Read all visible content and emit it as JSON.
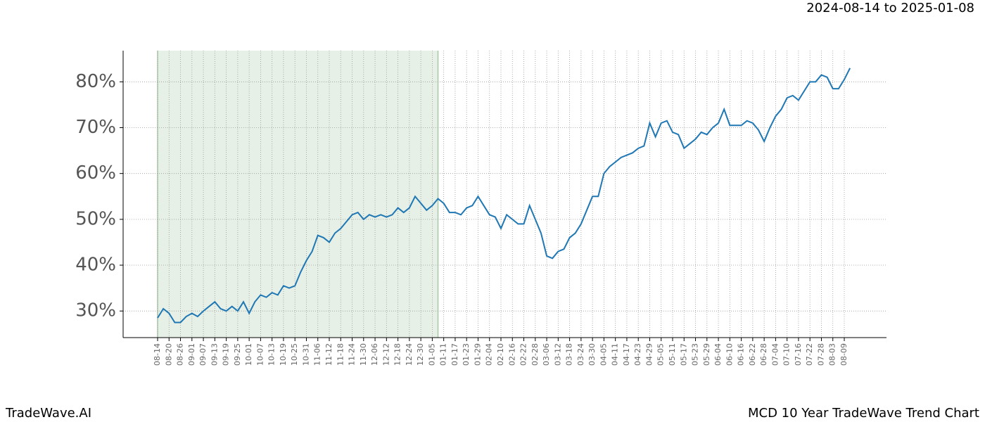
{
  "chart_data": {
    "type": "line",
    "title": "MCD 10 Year TradeWave Trend Chart",
    "date_range": "2024-08-14 to 2025-01-08",
    "source": "TradeWave.AI",
    "categories": [
      "08-14",
      null,
      "08-20",
      null,
      "08-26",
      null,
      "09-01",
      null,
      "09-07",
      null,
      "09-13",
      null,
      "09-19",
      null,
      "09-25",
      null,
      "10-01",
      null,
      "10-07",
      null,
      "10-13",
      null,
      "10-19",
      null,
      "10-25",
      null,
      "10-31",
      null,
      "11-06",
      null,
      "11-12",
      null,
      "11-18",
      null,
      "11-24",
      null,
      "11-30",
      null,
      "12-06",
      null,
      "12-12",
      null,
      "12-18",
      null,
      "12-24",
      null,
      "12-30",
      null,
      "01-05",
      null,
      "01-11",
      null,
      "01-17",
      null,
      "01-23",
      null,
      "01-29",
      null,
      "02-04",
      null,
      "02-10",
      null,
      "02-16",
      null,
      "02-22",
      null,
      "02-28",
      null,
      "03-06",
      null,
      "03-12",
      null,
      "03-18",
      null,
      "03-24",
      null,
      "03-30",
      null,
      "04-05",
      null,
      "04-11",
      null,
      "04-17",
      null,
      "04-23",
      null,
      "04-29",
      null,
      "05-05",
      null,
      "05-11",
      null,
      "05-17",
      null,
      "05-23",
      null,
      "05-29",
      null,
      "06-04",
      null,
      "06-10",
      null,
      "06-16",
      null,
      "06-22",
      null,
      "06-28",
      null,
      "07-04",
      null,
      "07-10",
      null,
      "07-16",
      null,
      "07-22",
      null,
      "07-28",
      null,
      "08-03",
      null,
      "08-09",
      null
    ],
    "values": [
      28.5,
      30.5,
      29.5,
      27.5,
      27.5,
      28.8,
      29.5,
      28.8,
      30,
      31,
      32,
      30.5,
      30,
      31,
      30,
      32,
      29.5,
      32,
      33.5,
      33,
      34,
      33.5,
      35.5,
      35,
      35.5,
      38.5,
      41,
      43,
      46.5,
      46,
      45,
      47,
      48,
      49.5,
      51,
      51.5,
      50,
      51,
      50.5,
      51,
      50.5,
      51,
      52.5,
      51.5,
      52.5,
      55,
      53.5,
      52,
      53,
      54.5,
      53.5,
      51.5,
      51.5,
      51,
      52.5,
      53,
      55,
      53,
      51,
      50.5,
      48,
      51,
      50,
      49,
      49,
      53,
      50,
      47,
      42,
      41.5,
      43,
      43.5,
      46,
      47,
      49,
      52,
      55,
      55,
      60,
      61.5,
      62.5,
      63.5,
      64,
      64.5,
      65.5,
      66,
      71,
      68,
      71,
      71.5,
      69,
      68.5,
      65.5,
      66.5,
      67.5,
      69,
      68.5,
      70,
      71,
      74,
      70.5,
      70.5,
      70.5,
      71.5,
      71,
      69.5,
      67,
      70,
      72.5,
      74,
      76.5,
      77,
      76,
      78,
      80,
      80,
      81.5,
      81,
      78.5,
      78.5,
      80.5,
      83
    ],
    "color": "#1f77b4",
    "shaded_range": [
      0,
      49
    ],
    "shade_color": "#e6f0e6",
    "ylim": [
      24.2,
      86.8
    ],
    "yticks": [
      {
        "value": 30,
        "label": "30%"
      },
      {
        "value": 40,
        "label": "40%"
      },
      {
        "value": 50,
        "label": "50%"
      },
      {
        "value": 60,
        "label": "60%"
      },
      {
        "value": 70,
        "label": "70%"
      },
      {
        "value": 80,
        "label": "80%"
      }
    ],
    "grid": true
  }
}
